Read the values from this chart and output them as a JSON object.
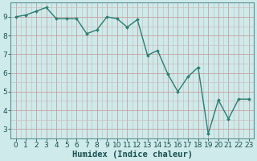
{
  "x": [
    0,
    1,
    2,
    3,
    4,
    5,
    6,
    7,
    8,
    9,
    10,
    11,
    12,
    13,
    14,
    15,
    16,
    17,
    18,
    19,
    20,
    21,
    22,
    23
  ],
  "y": [
    9.0,
    9.1,
    9.3,
    9.5,
    8.9,
    8.9,
    8.9,
    8.1,
    8.3,
    9.0,
    8.9,
    8.45,
    8.85,
    6.95,
    7.2,
    5.95,
    5.0,
    5.8,
    6.3,
    2.75,
    4.55,
    3.55,
    4.6,
    4.6
  ],
  "line_color": "#2d7d72",
  "marker": "D",
  "marker_size": 2.0,
  "bg_color": "#ceeaea",
  "grid_color_major": "#b8d4d4",
  "grid_color_minor": "#c8e0e0",
  "xlabel": "Humidex (Indice chaleur)",
  "ylim": [
    2.5,
    9.75
  ],
  "xlim": [
    -0.5,
    23.5
  ],
  "yticks": [
    3,
    4,
    5,
    6,
    7,
    8,
    9
  ],
  "xticks": [
    0,
    1,
    2,
    3,
    4,
    5,
    6,
    7,
    8,
    9,
    10,
    11,
    12,
    13,
    14,
    15,
    16,
    17,
    18,
    19,
    20,
    21,
    22,
    23
  ],
  "xlabel_fontsize": 7.5,
  "tick_fontsize": 6.5,
  "line_width": 1.0,
  "fig_width": 3.2,
  "fig_height": 2.0,
  "dpi": 100
}
